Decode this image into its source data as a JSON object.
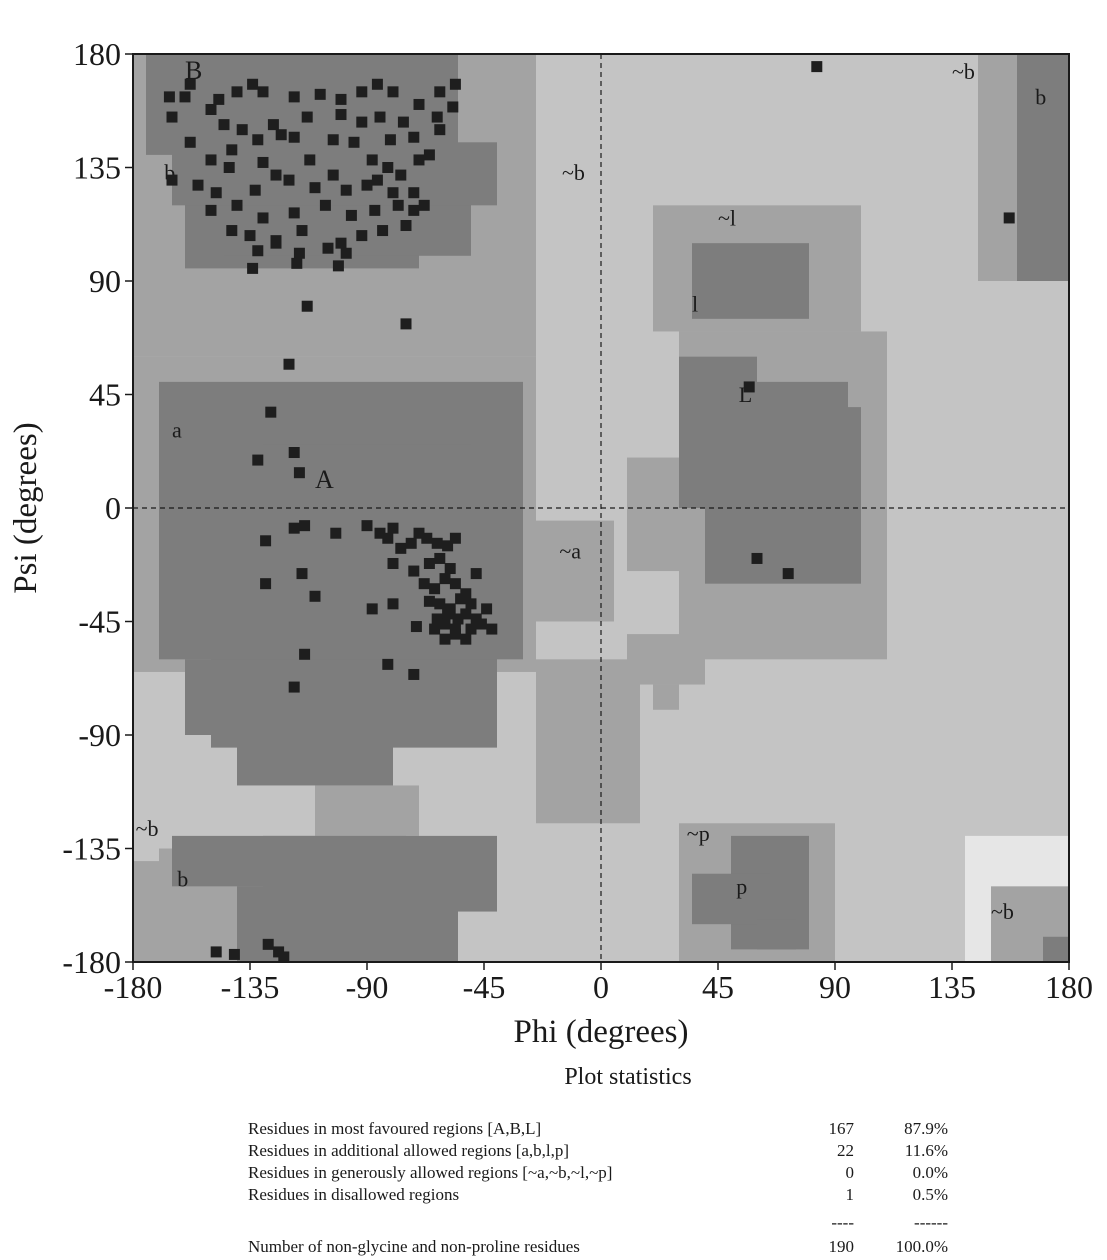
{
  "chart_data": {
    "type": "scatter",
    "xlabel": "Phi (degrees)",
    "ylabel": "Psi (degrees)",
    "xlim": [
      -180,
      180
    ],
    "ylim": [
      -180,
      180
    ],
    "x_ticks": [
      -180,
      -135,
      -90,
      -45,
      0,
      45,
      90,
      135,
      180
    ],
    "y_ticks": [
      180,
      135,
      90,
      45,
      0,
      -45,
      -90,
      -135,
      -180
    ],
    "zero_lines": "dashed",
    "region_colors": {
      "core": "#7d7d7d",
      "allowed": "#a3a3a3",
      "generous": "#c4c4c4",
      "disallowed": "#e6e6e6",
      "points": "#1e1e1e"
    },
    "region_labels": [
      {
        "text": "B",
        "x": -160,
        "y": 170,
        "size": "big"
      },
      {
        "text": "b",
        "x": -168,
        "y": 130
      },
      {
        "text": "~b",
        "x": -15,
        "y": 130
      },
      {
        "text": "a",
        "x": -165,
        "y": 28
      },
      {
        "text": "A",
        "x": -110,
        "y": 8,
        "size": "big"
      },
      {
        "text": "~a",
        "x": -16,
        "y": -20
      },
      {
        "text": "~l",
        "x": 45,
        "y": 112
      },
      {
        "text": "l",
        "x": 35,
        "y": 78
      },
      {
        "text": "L",
        "x": 53,
        "y": 42
      },
      {
        "text": "~b",
        "x": 135,
        "y": 170
      },
      {
        "text": "b",
        "x": 167,
        "y": 160
      },
      {
        "text": "~b",
        "x": -179,
        "y": -130
      },
      {
        "text": "b",
        "x": -163,
        "y": -150
      },
      {
        "text": "~p",
        "x": 33,
        "y": -132
      },
      {
        "text": "p",
        "x": 52,
        "y": -153
      },
      {
        "text": "~b",
        "x": 150,
        "y": -163
      }
    ],
    "residues": [
      [
        -166,
        163
      ],
      [
        -160,
        163
      ],
      [
        -158,
        168
      ],
      [
        -147,
        162
      ],
      [
        -140,
        165
      ],
      [
        -134,
        168
      ],
      [
        -130,
        165
      ],
      [
        -118,
        163
      ],
      [
        -108,
        164
      ],
      [
        -100,
        162
      ],
      [
        -92,
        165
      ],
      [
        -86,
        168
      ],
      [
        -80,
        165
      ],
      [
        -70,
        160
      ],
      [
        -62,
        165
      ],
      [
        -56,
        168
      ],
      [
        -165,
        155
      ],
      [
        -150,
        158
      ],
      [
        -145,
        152
      ],
      [
        -138,
        150
      ],
      [
        -126,
        152
      ],
      [
        -113,
        155
      ],
      [
        -100,
        156
      ],
      [
        -92,
        153
      ],
      [
        -85,
        155
      ],
      [
        -76,
        153
      ],
      [
        -63,
        155
      ],
      [
        -57,
        159
      ],
      [
        -158,
        145
      ],
      [
        -142,
        142
      ],
      [
        -132,
        146
      ],
      [
        -123,
        148
      ],
      [
        -118,
        147
      ],
      [
        -103,
        146
      ],
      [
        -95,
        145
      ],
      [
        -81,
        146
      ],
      [
        -72,
        147
      ],
      [
        -62,
        150
      ],
      [
        -150,
        138
      ],
      [
        -143,
        135
      ],
      [
        -130,
        137
      ],
      [
        -125,
        132
      ],
      [
        -112,
        138
      ],
      [
        -103,
        132
      ],
      [
        -88,
        138
      ],
      [
        -82,
        135
      ],
      [
        -77,
        132
      ],
      [
        -70,
        138
      ],
      [
        -66,
        140
      ],
      [
        -165,
        130
      ],
      [
        -155,
        128
      ],
      [
        -148,
        125
      ],
      [
        -133,
        126
      ],
      [
        -120,
        130
      ],
      [
        -110,
        127
      ],
      [
        -98,
        126
      ],
      [
        -90,
        128
      ],
      [
        -86,
        130
      ],
      [
        -80,
        125
      ],
      [
        -72,
        125
      ],
      [
        -150,
        118
      ],
      [
        -140,
        120
      ],
      [
        -130,
        115
      ],
      [
        -118,
        117
      ],
      [
        -106,
        120
      ],
      [
        -96,
        116
      ],
      [
        -87,
        118
      ],
      [
        -78,
        120
      ],
      [
        -72,
        118
      ],
      [
        -68,
        120
      ],
      [
        -142,
        110
      ],
      [
        -135,
        108
      ],
      [
        -125,
        106
      ],
      [
        -115,
        110
      ],
      [
        -100,
        105
      ],
      [
        -92,
        108
      ],
      [
        -84,
        110
      ],
      [
        -75,
        112
      ],
      [
        -132,
        102
      ],
      [
        -125,
        105
      ],
      [
        -116,
        101
      ],
      [
        -105,
        103
      ],
      [
        -98,
        101
      ],
      [
        -134,
        95
      ],
      [
        -117,
        97
      ],
      [
        -101,
        96
      ],
      [
        -113,
        80
      ],
      [
        -75,
        73
      ],
      [
        -120,
        57
      ],
      [
        -127,
        38
      ],
      [
        -132,
        19
      ],
      [
        -118,
        22
      ],
      [
        -116,
        14
      ],
      [
        -129,
        -13
      ],
      [
        -118,
        -8
      ],
      [
        -114,
        -7
      ],
      [
        -102,
        -10
      ],
      [
        -90,
        -7
      ],
      [
        -85,
        -10
      ],
      [
        -82,
        -12
      ],
      [
        -80,
        -8
      ],
      [
        -77,
        -16
      ],
      [
        -73,
        -14
      ],
      [
        -70,
        -10
      ],
      [
        -67,
        -12
      ],
      [
        -63,
        -14
      ],
      [
        -59,
        -15
      ],
      [
        -56,
        -12
      ],
      [
        -80,
        -22
      ],
      [
        -72,
        -25
      ],
      [
        -66,
        -22
      ],
      [
        -62,
        -20
      ],
      [
        -58,
        -24
      ],
      [
        -68,
        -30
      ],
      [
        -64,
        -32
      ],
      [
        -60,
        -28
      ],
      [
        -56,
        -30
      ],
      [
        -52,
        -34
      ],
      [
        -48,
        -26
      ],
      [
        -66,
        -37
      ],
      [
        -62,
        -38
      ],
      [
        -58,
        -40
      ],
      [
        -54,
        -36
      ],
      [
        -50,
        -38
      ],
      [
        -63,
        -44
      ],
      [
        -59,
        -42
      ],
      [
        -55,
        -44
      ],
      [
        -52,
        -42
      ],
      [
        -48,
        -44
      ],
      [
        -44,
        -40
      ],
      [
        -71,
        -47
      ],
      [
        -64,
        -48
      ],
      [
        -60,
        -46
      ],
      [
        -56,
        -48
      ],
      [
        -50,
        -48
      ],
      [
        -46,
        -46
      ],
      [
        -60,
        -52
      ],
      [
        -56,
        -50
      ],
      [
        -52,
        -52
      ],
      [
        -129,
        -30
      ],
      [
        -115,
        -26
      ],
      [
        -110,
        -35
      ],
      [
        -88,
        -40
      ],
      [
        -80,
        -38
      ],
      [
        -42,
        -48
      ],
      [
        -114,
        -58
      ],
      [
        -82,
        -62
      ],
      [
        -118,
        -71
      ],
      [
        -72,
        -66
      ],
      [
        -148,
        -176
      ],
      [
        -141,
        -177
      ],
      [
        -128,
        -173
      ],
      [
        -124,
        -176
      ],
      [
        -122,
        -178
      ],
      [
        83,
        175
      ],
      [
        157,
        115
      ],
      [
        57,
        48
      ],
      [
        60,
        -20
      ],
      [
        72,
        -26
      ]
    ]
  },
  "statistics": {
    "title": "Plot statistics",
    "rows": [
      {
        "label": "Residues in most favoured regions  [A,B,L]",
        "count": "167",
        "percent": "87.9%"
      },
      {
        "label": "Residues in additional allowed regions  [a,b,l,p]",
        "count": "22",
        "percent": "11.6%"
      },
      {
        "label": "Residues in generously allowed regions  [~a,~b,~l,~p]",
        "count": "0",
        "percent": "0.0%"
      },
      {
        "label": "Residues in disallowed regions",
        "count": "1",
        "percent": "0.5%"
      }
    ],
    "separator_count": "----",
    "separator_percent": "------",
    "total": {
      "label": "Number of non-glycine and non-proline residues",
      "count": "190",
      "percent": "100.0%"
    }
  }
}
